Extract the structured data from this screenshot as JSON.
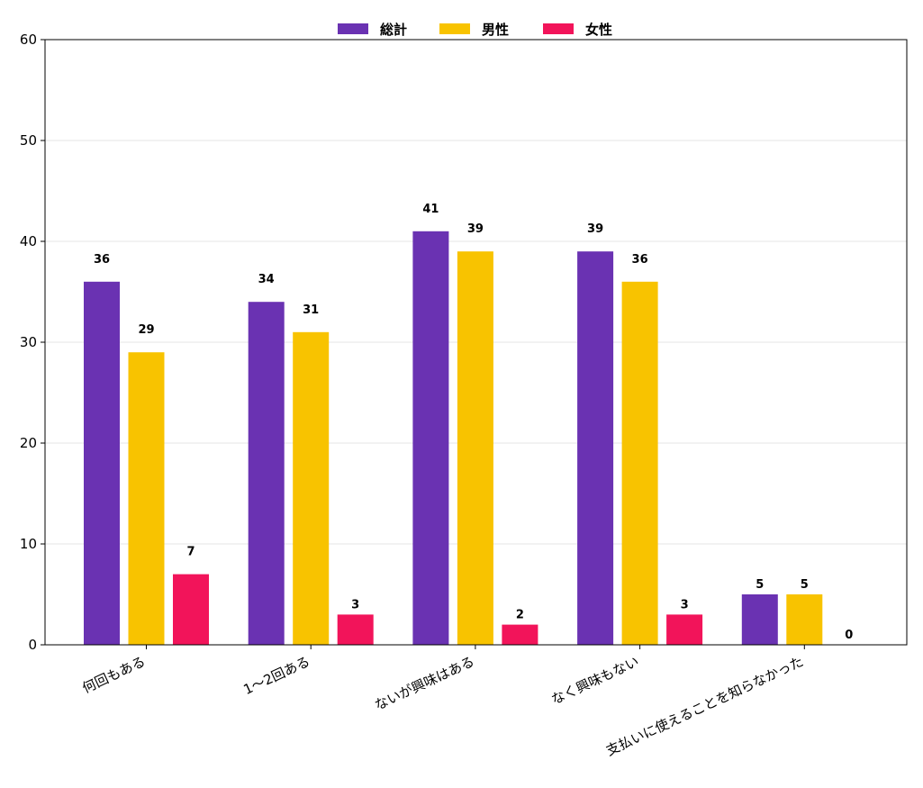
{
  "chart_data": {
    "type": "bar",
    "categories": [
      "何回もある",
      "1〜2回ある",
      "ないが興味はある",
      "なく興味もない",
      "支払いに使えることを知らなかった"
    ],
    "series": [
      {
        "name": "総計",
        "color": "#6a32b2",
        "values": [
          36,
          34,
          41,
          39,
          5
        ]
      },
      {
        "name": "男性",
        "color": "#f8c300",
        "values": [
          29,
          31,
          39,
          36,
          5
        ]
      },
      {
        "name": "女性",
        "color": "#f2145a",
        "values": [
          7,
          3,
          2,
          3,
          0
        ]
      }
    ],
    "ylim": [
      0,
      60
    ],
    "yticks": [
      0,
      10,
      20,
      30,
      40,
      50,
      60
    ],
    "grid": true,
    "legend_position": "top-center",
    "title": "",
    "xlabel": "",
    "ylabel": ""
  }
}
